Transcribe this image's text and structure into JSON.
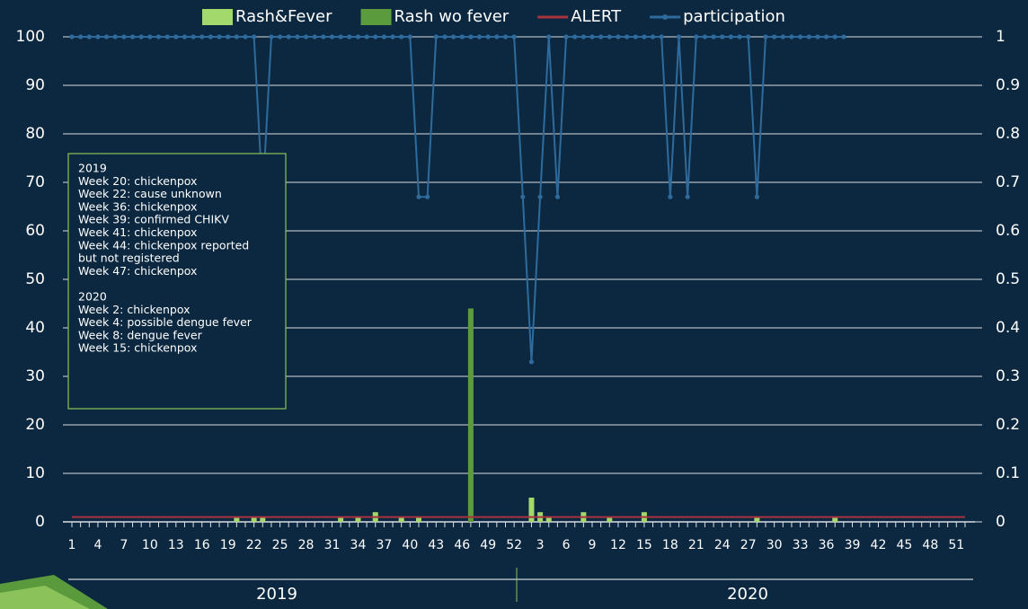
{
  "chart_data": {
    "type": "bar",
    "categories": [
      "1",
      null,
      null,
      "4",
      null,
      null,
      "7",
      null,
      null,
      "10",
      null,
      null,
      "13",
      null,
      null,
      "16",
      null,
      null,
      "19",
      null,
      null,
      "22",
      null,
      null,
      "25",
      null,
      null,
      "28",
      null,
      null,
      "31",
      null,
      null,
      "34",
      null,
      null,
      "37",
      null,
      null,
      "40",
      null,
      null,
      "43",
      null,
      null,
      "46",
      null,
      null,
      "49",
      null,
      null,
      "52",
      null,
      null,
      "3",
      null,
      null,
      "6",
      null,
      null,
      "9",
      null,
      null,
      "12",
      null,
      null,
      "15",
      null,
      null,
      "18",
      null,
      null,
      "21",
      null,
      null,
      "24",
      null,
      null,
      "27",
      null,
      null,
      "30",
      null,
      null,
      "33",
      null,
      null,
      "36",
      null,
      null,
      "39",
      null,
      null,
      "42",
      null,
      null,
      "45",
      null,
      null,
      "48",
      null,
      null,
      "51",
      null
    ],
    "group_labels": [
      "2019",
      "2020"
    ],
    "series": [
      {
        "name": "Rash&Fever",
        "color": "#a3d86c",
        "values": [
          0,
          0,
          0,
          0,
          0,
          0,
          0,
          0,
          0,
          0,
          0,
          0,
          0,
          0,
          0,
          0,
          0,
          0,
          0,
          1,
          0,
          1,
          1,
          0,
          0,
          0,
          0,
          0,
          0,
          0,
          0,
          1,
          0,
          1,
          0,
          2,
          0,
          0,
          1,
          0,
          1,
          0,
          0,
          0,
          0,
          0,
          0,
          0,
          0,
          0,
          0,
          0,
          0,
          5,
          2,
          1,
          0,
          0,
          0,
          2,
          0,
          0,
          1,
          0,
          0,
          0,
          2,
          0,
          0,
          0,
          0,
          0,
          0,
          0,
          0,
          0,
          0,
          0,
          0,
          1,
          0,
          0,
          0,
          0,
          0,
          0,
          0,
          0,
          1,
          0,
          0,
          0,
          0,
          0,
          0,
          0,
          0,
          0,
          0,
          0,
          0,
          0,
          0,
          0
        ]
      },
      {
        "name": "Rash wo fever",
        "color": "#5c9a3e",
        "values": [
          0,
          0,
          0,
          0,
          0,
          0,
          0,
          0,
          0,
          0,
          0,
          0,
          0,
          0,
          0,
          0,
          0,
          0,
          0,
          0,
          0,
          0,
          0,
          0,
          0,
          0,
          0,
          0,
          0,
          0,
          0,
          0,
          0,
          0,
          0,
          0,
          0,
          0,
          0,
          0,
          0,
          0,
          0,
          0,
          0,
          0,
          44,
          0,
          0,
          0,
          0,
          0,
          0,
          0,
          0,
          0,
          0,
          0,
          0,
          0,
          0,
          0,
          0,
          0,
          0,
          0,
          0,
          0,
          0,
          0,
          0,
          0,
          0,
          0,
          0,
          0,
          0,
          0,
          0,
          0,
          0,
          0,
          0,
          0,
          0,
          0,
          0,
          0,
          0,
          0,
          0,
          0,
          0,
          0,
          0,
          0,
          0,
          0,
          0,
          0,
          0,
          0,
          0,
          0
        ]
      },
      {
        "name": "ALERT",
        "color": "#a8323e",
        "type": "line",
        "values": [
          1,
          1,
          1,
          1,
          1,
          1,
          1,
          1,
          1,
          1,
          1,
          1,
          1,
          1,
          1,
          1,
          1,
          1,
          1,
          1,
          1,
          1,
          1,
          1,
          1,
          1,
          1,
          1,
          1,
          1,
          1,
          1,
          1,
          1,
          1,
          1,
          1,
          1,
          1,
          1,
          1,
          1,
          1,
          1,
          1,
          1,
          1,
          1,
          1,
          1,
          1,
          1,
          1,
          1,
          1,
          1,
          1,
          1,
          1,
          1,
          1,
          1,
          1,
          1,
          1,
          1,
          1,
          1,
          1,
          1,
          1,
          1,
          1,
          1,
          1,
          1,
          1,
          1,
          1,
          1,
          1,
          1,
          1,
          1,
          1,
          1,
          1,
          1,
          1,
          1,
          1,
          1,
          1,
          1,
          1,
          1,
          1,
          1,
          1,
          1,
          1,
          1,
          1,
          1
        ]
      },
      {
        "name": "participation",
        "color": "#2e6b9c",
        "type": "line",
        "axis": "y2",
        "markers": true,
        "values": [
          1,
          1,
          1,
          1,
          1,
          1,
          1,
          1,
          1,
          1,
          1,
          1,
          1,
          1,
          1,
          1,
          1,
          1,
          1,
          1,
          1,
          1,
          0.67,
          1,
          1,
          1,
          1,
          1,
          1,
          1,
          1,
          1,
          1,
          1,
          1,
          1,
          1,
          1,
          1,
          1,
          0.67,
          0.67,
          1,
          1,
          1,
          1,
          1,
          1,
          1,
          1,
          1,
          1,
          0.67,
          0.33,
          0.67,
          1,
          0.67,
          1,
          1,
          1,
          1,
          1,
          1,
          1,
          1,
          1,
          1,
          1,
          1,
          0.67,
          1,
          0.67,
          1,
          1,
          1,
          1,
          1,
          1,
          1,
          0.67,
          1,
          1,
          1,
          1,
          1,
          1,
          1,
          1,
          1,
          1,
          null,
          null,
          null,
          null,
          null,
          null,
          null,
          null,
          null,
          null,
          null,
          null,
          null,
          null
        ]
      }
    ],
    "ylim": [
      0,
      100
    ],
    "yticks": [
      0,
      10,
      20,
      30,
      40,
      50,
      60,
      70,
      80,
      90,
      100
    ],
    "y2lim": [
      0,
      1
    ],
    "y2ticks": [
      0,
      0.1,
      0.2,
      0.3,
      0.4,
      0.5,
      0.6,
      0.7,
      0.8,
      0.9,
      1
    ],
    "grid": true,
    "legend": "top",
    "annotation": [
      {
        "heading": "2019",
        "lines": [
          "Week 20: chickenpox",
          "Week 22: cause unknown",
          "Week 36: chickenpox",
          "Week 39: confirmed CHIKV",
          "Week 41: chickenpox",
          "Week 44: chickenpox reported",
          "but not registered",
          "Week 47: chickenpox"
        ]
      },
      {
        "heading": "2020",
        "lines": [
          "Week 2: chickenpox",
          "Week 4: possible dengue fever",
          "Week 8: dengue fever",
          "Week 15: chickenpox"
        ]
      }
    ]
  }
}
